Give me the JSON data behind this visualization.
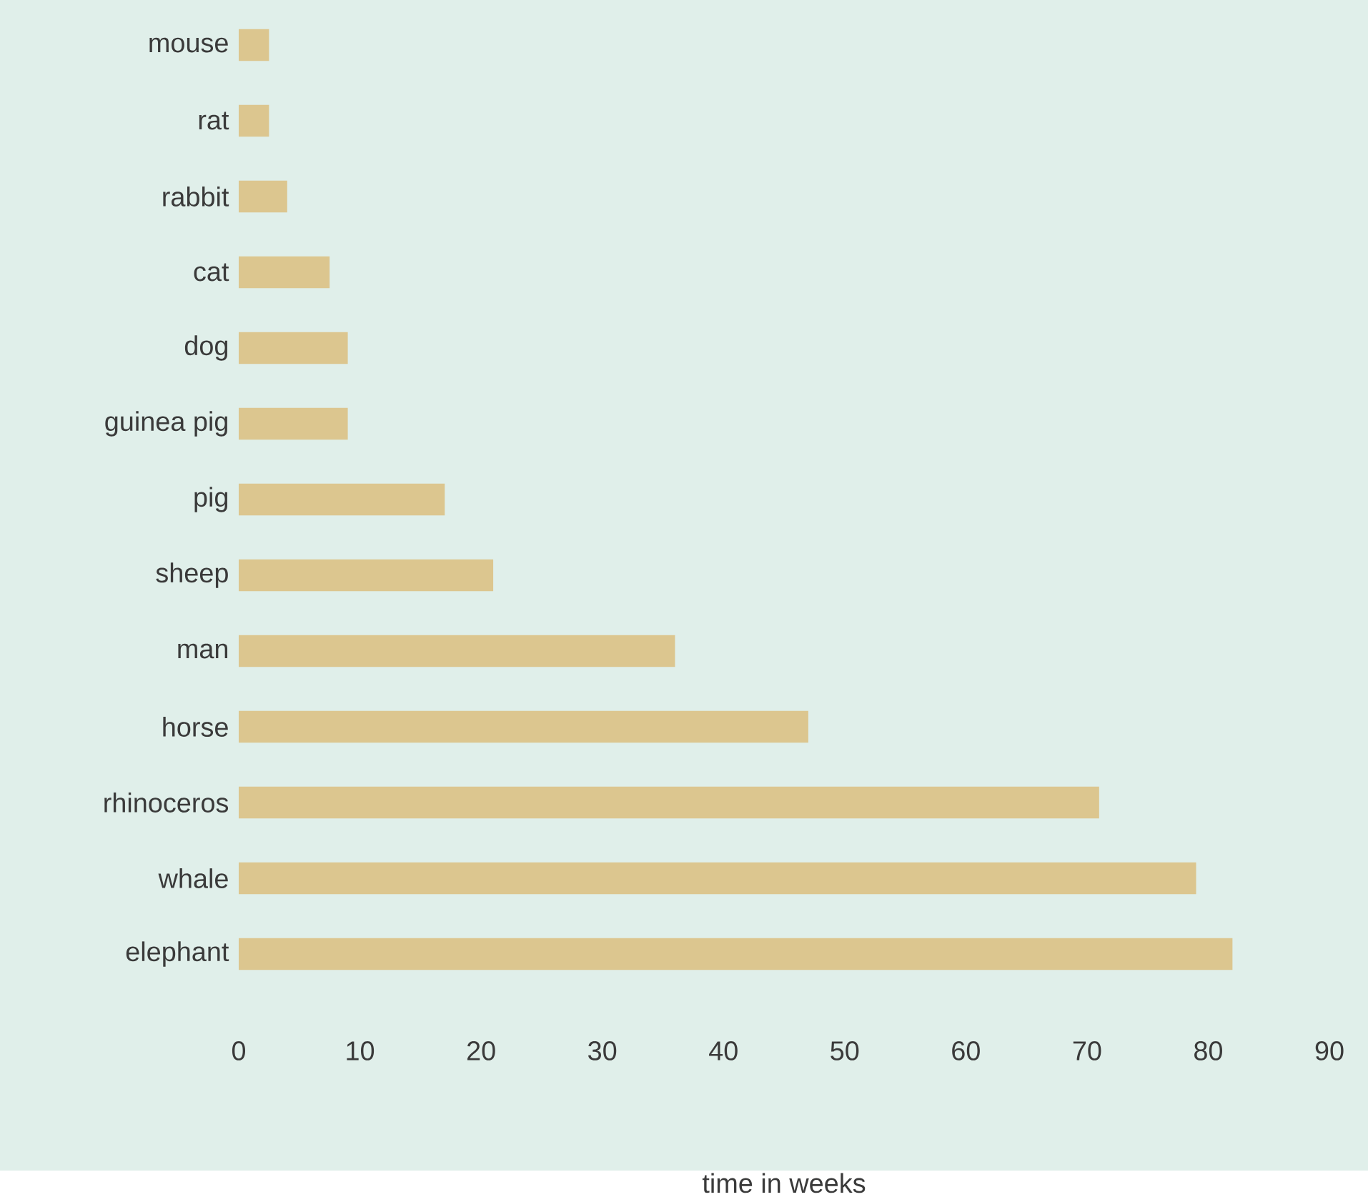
{
  "chart_data": {
    "type": "bar",
    "orientation": "horizontal",
    "xlabel": "time in weeks",
    "categories": [
      "mouse",
      "rat",
      "rabbit",
      "cat",
      "dog",
      "guinea pig",
      "pig",
      "sheep",
      "man",
      "horse",
      "rhinoceros",
      "whale",
      "elephant"
    ],
    "values": [
      2.5,
      2.5,
      4,
      7.5,
      9,
      9,
      17,
      21,
      36,
      47,
      71,
      79,
      82
    ],
    "color": "#dcc68f",
    "xlim": [
      0,
      90
    ],
    "xticks": [
      0,
      10,
      20,
      30,
      40,
      50,
      60,
      70,
      80,
      90
    ]
  }
}
